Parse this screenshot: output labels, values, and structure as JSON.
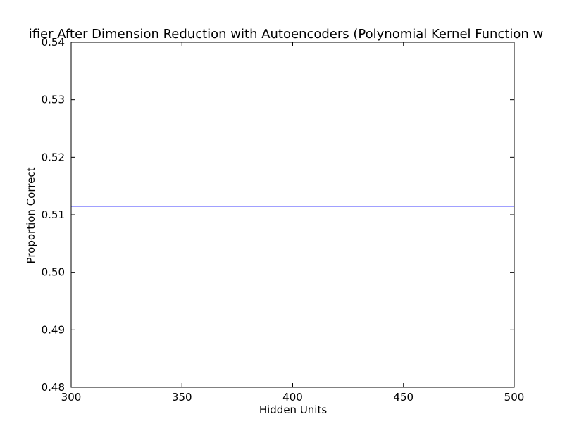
{
  "chart_data": {
    "type": "line",
    "title": "ifier After Dimension Reduction with Autoencoders (Polynomial Kernel Function w",
    "xlabel": "Hidden Units",
    "ylabel": "Proportion Correct",
    "xlim": [
      300,
      500
    ],
    "ylim": [
      0.48,
      0.54
    ],
    "x_ticks": [
      "300",
      "350",
      "400",
      "450",
      "500"
    ],
    "y_ticks": [
      "0.48",
      "0.49",
      "0.50",
      "0.51",
      "0.52",
      "0.53",
      "0.54"
    ],
    "x_tick_values": [
      300,
      350,
      400,
      450,
      500
    ],
    "y_tick_values": [
      0.48,
      0.49,
      0.5,
      0.51,
      0.52,
      0.53,
      0.54
    ],
    "grid": false,
    "series": [
      {
        "color": "#0000ff",
        "x": [
          300,
          350,
          400,
          450,
          500
        ],
        "y": [
          0.5115,
          0.5115,
          0.5115,
          0.5115,
          0.5115
        ]
      }
    ]
  }
}
